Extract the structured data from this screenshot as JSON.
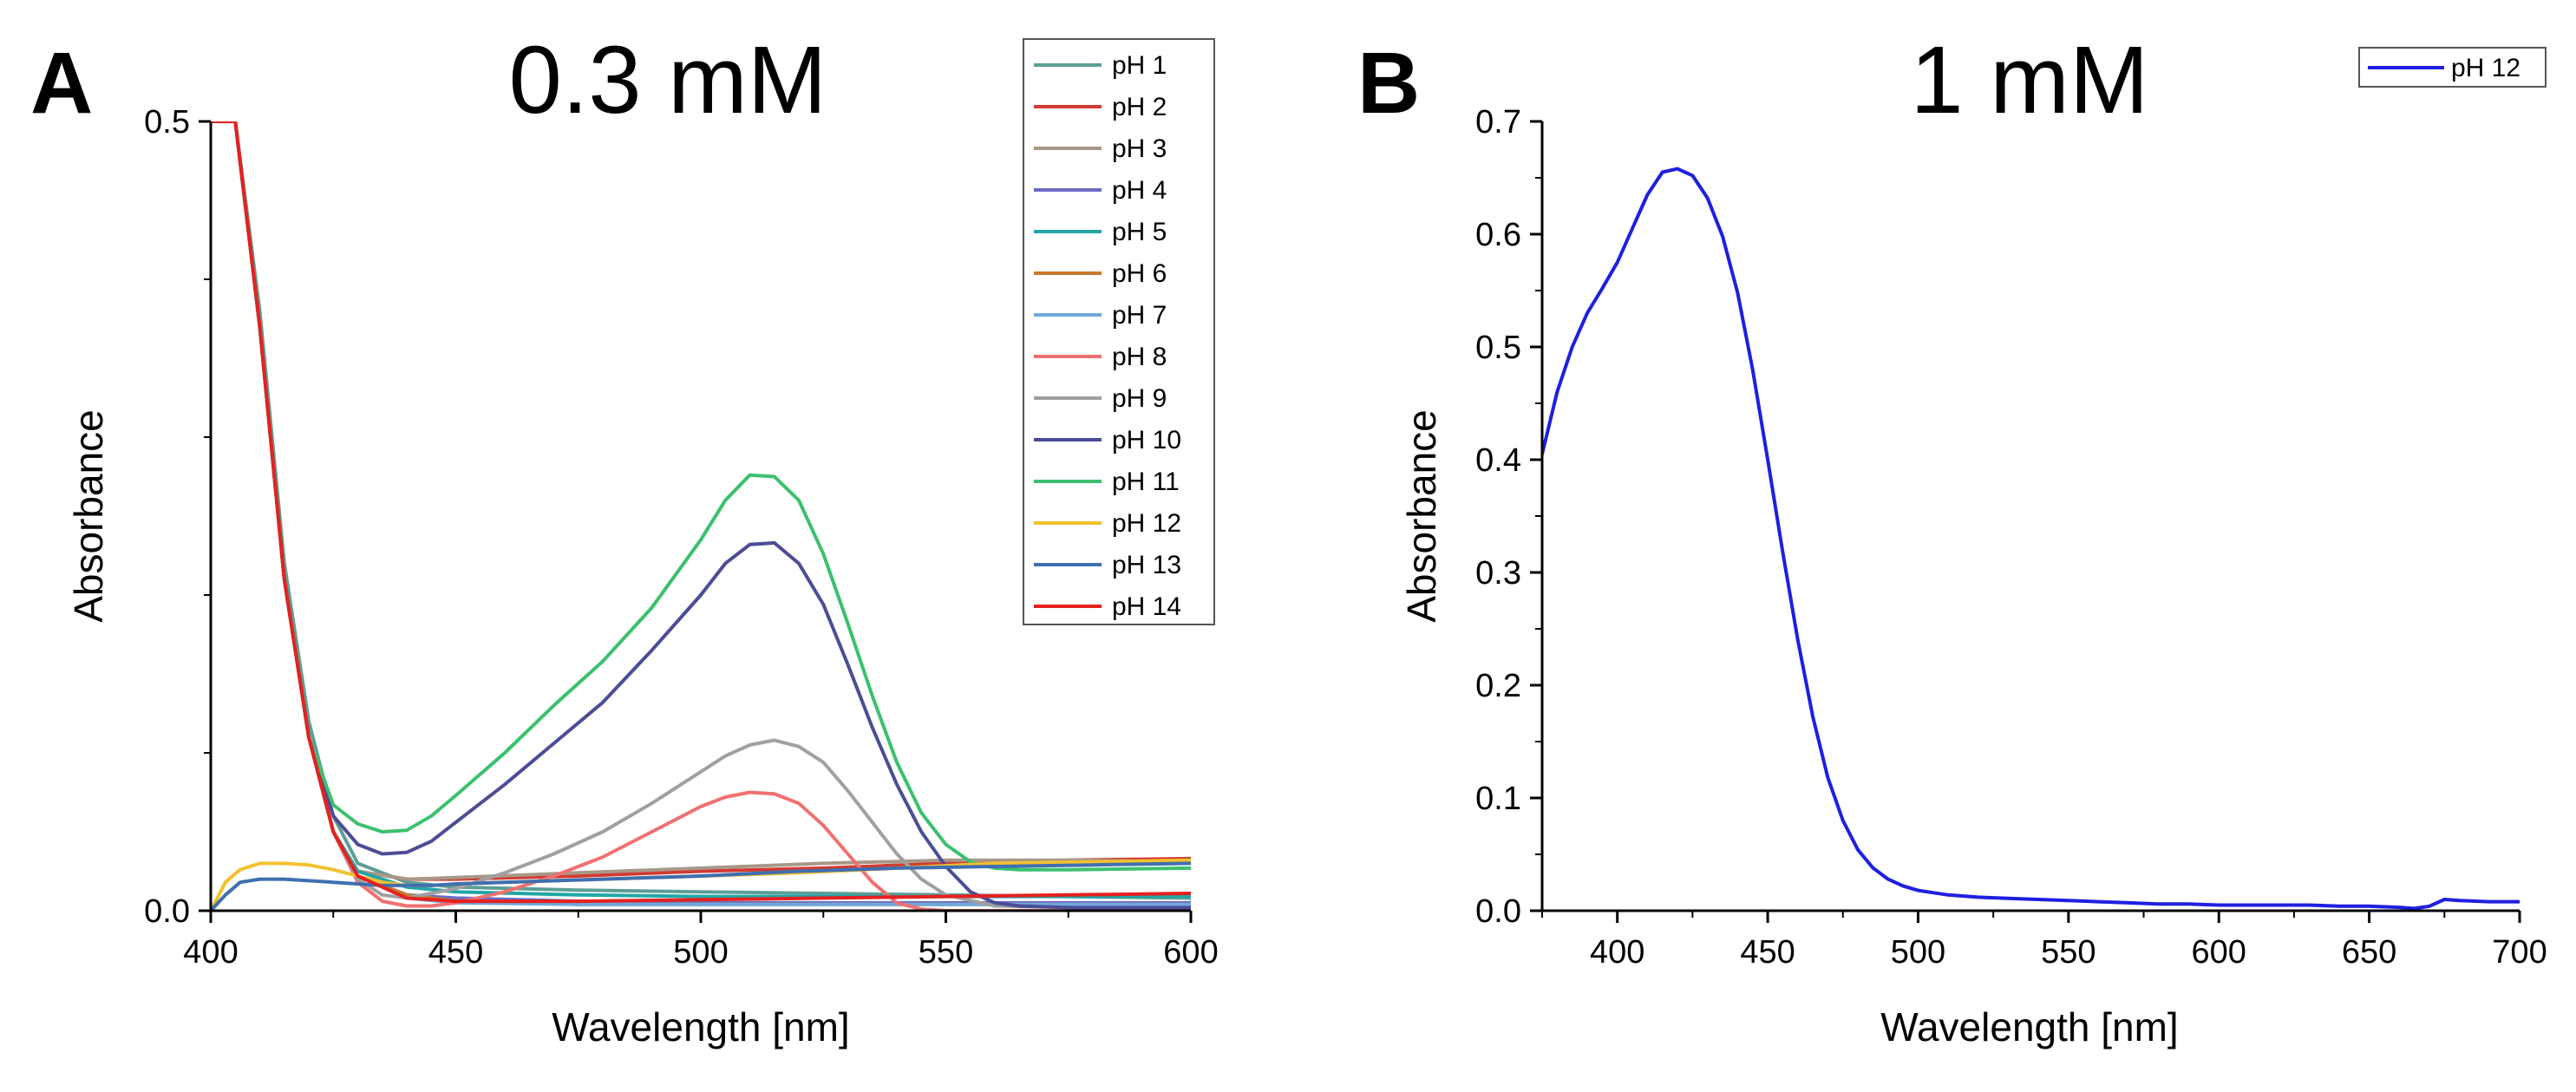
{
  "figure": {
    "background": "#ffffff"
  },
  "chart_data": [
    {
      "panel": "A",
      "type": "line",
      "title": "0.3 mM",
      "xlabel": "Wavelength [nm]",
      "ylabel": "Absorbance",
      "xlim": [
        400,
        600
      ],
      "ylim": [
        0,
        0.5
      ],
      "xticks": [
        400,
        450,
        500,
        550,
        600
      ],
      "xtick_labels": [
        "400",
        "450",
        "500",
        "550",
        "600"
      ],
      "yticks": [
        0,
        0.5
      ],
      "ytick_labels": [
        "0.0",
        "0.5"
      ],
      "legend_position": "top-right",
      "series": [
        {
          "name": "pH 1",
          "color": "#5c9e96",
          "x": [
            400,
            402,
            405,
            410,
            415,
            420,
            425,
            430,
            440,
            450,
            475,
            500,
            525,
            550,
            575,
            600
          ],
          "y": [
            0.5,
            0.5,
            0.5,
            0.38,
            0.22,
            0.12,
            0.06,
            0.03,
            0.018,
            0.015,
            0.013,
            0.012,
            0.011,
            0.01,
            0.009,
            0.008
          ]
        },
        {
          "name": "pH 2",
          "color": "#d23a32",
          "x": [
            400,
            402,
            405,
            410,
            415,
            420,
            425,
            430,
            440,
            450,
            475,
            500,
            525,
            550,
            575,
            600
          ],
          "y": [
            0.5,
            0.5,
            0.5,
            0.37,
            0.21,
            0.11,
            0.05,
            0.025,
            0.02,
            0.02,
            0.022,
            0.025,
            0.027,
            0.03,
            0.032,
            0.033
          ]
        },
        {
          "name": "pH 3",
          "color": "#a89888",
          "x": [
            400,
            402,
            405,
            410,
            415,
            420,
            425,
            430,
            440,
            450,
            475,
            500,
            525,
            550,
            575,
            600
          ],
          "y": [
            0.5,
            0.5,
            0.5,
            0.37,
            0.21,
            0.11,
            0.05,
            0.025,
            0.02,
            0.021,
            0.024,
            0.027,
            0.03,
            0.032,
            0.032,
            0.031
          ]
        },
        {
          "name": "pH 4",
          "color": "#6b6bc4",
          "x": [
            400,
            402,
            405,
            410,
            415,
            420,
            425,
            430,
            440,
            450,
            475,
            500,
            525,
            550,
            575,
            600
          ],
          "y": [
            0.5,
            0.5,
            0.5,
            0.37,
            0.21,
            0.11,
            0.05,
            0.022,
            0.01,
            0.008,
            0.006,
            0.005,
            0.005,
            0.005,
            0.005,
            0.005
          ]
        },
        {
          "name": "pH 5",
          "color": "#22a6a6",
          "x": [
            400,
            402,
            405,
            410,
            415,
            420,
            425,
            430,
            440,
            450,
            475,
            500,
            525,
            550,
            575,
            600
          ],
          "y": [
            0.5,
            0.5,
            0.5,
            0.37,
            0.21,
            0.11,
            0.05,
            0.025,
            0.015,
            0.012,
            0.01,
            0.009,
            0.009,
            0.009,
            0.009,
            0.009
          ]
        },
        {
          "name": "pH 6",
          "color": "#c8782a",
          "x": [
            400,
            402,
            405,
            410,
            415,
            420,
            425,
            430,
            440,
            450,
            475,
            500,
            525,
            550,
            575,
            600
          ],
          "y": [
            0.5,
            0.5,
            0.5,
            0.37,
            0.21,
            0.11,
            0.05,
            0.022,
            0.01,
            0.006,
            0.004,
            0.004,
            0.004,
            0.004,
            0.004,
            0.004
          ]
        },
        {
          "name": "pH 7",
          "color": "#6fa8dc",
          "x": [
            400,
            402,
            405,
            410,
            415,
            420,
            425,
            430,
            440,
            450,
            475,
            500,
            525,
            550,
            575,
            600
          ],
          "y": [
            0.5,
            0.5,
            0.5,
            0.37,
            0.21,
            0.11,
            0.05,
            0.022,
            0.008,
            0.005,
            0.004,
            0.004,
            0.004,
            0.004,
            0.004,
            0.004
          ]
        },
        {
          "name": "pH 8",
          "color": "#f07070",
          "x": [
            400,
            405,
            410,
            415,
            420,
            425,
            430,
            435,
            440,
            445,
            450,
            460,
            470,
            480,
            490,
            500,
            505,
            510,
            515,
            520,
            525,
            530,
            535,
            540,
            545,
            550,
            575,
            600
          ],
          "y": [
            0.5,
            0.5,
            0.37,
            0.21,
            0.11,
            0.05,
            0.018,
            0.006,
            0.003,
            0.003,
            0.005,
            0.012,
            0.022,
            0.034,
            0.05,
            0.066,
            0.072,
            0.075,
            0.074,
            0.068,
            0.054,
            0.036,
            0.018,
            0.005,
            0.001,
            0,
            0,
            0
          ]
        },
        {
          "name": "pH 9",
          "color": "#a0a0a0",
          "x": [
            400,
            405,
            410,
            415,
            420,
            425,
            430,
            435,
            440,
            450,
            460,
            470,
            480,
            490,
            500,
            505,
            510,
            515,
            520,
            525,
            530,
            535,
            540,
            545,
            550,
            560,
            575,
            600
          ],
          "y": [
            0.5,
            0.5,
            0.37,
            0.21,
            0.11,
            0.05,
            0.02,
            0.01,
            0.008,
            0.014,
            0.024,
            0.036,
            0.05,
            0.068,
            0.088,
            0.098,
            0.105,
            0.108,
            0.104,
            0.094,
            0.076,
            0.056,
            0.036,
            0.02,
            0.01,
            0.003,
            0.002,
            0.002
          ]
        },
        {
          "name": "pH 10",
          "color": "#4c4c96",
          "x": [
            400,
            405,
            410,
            415,
            420,
            425,
            430,
            435,
            440,
            445,
            450,
            460,
            470,
            480,
            490,
            500,
            505,
            510,
            515,
            520,
            525,
            530,
            535,
            540,
            545,
            550,
            555,
            560,
            565,
            575,
            600
          ],
          "y": [
            0.5,
            0.5,
            0.37,
            0.21,
            0.11,
            0.06,
            0.042,
            0.036,
            0.037,
            0.044,
            0.056,
            0.08,
            0.106,
            0.132,
            0.165,
            0.2,
            0.22,
            0.232,
            0.233,
            0.22,
            0.194,
            0.156,
            0.116,
            0.08,
            0.05,
            0.028,
            0.012,
            0.005,
            0.003,
            0.002,
            0.002
          ]
        },
        {
          "name": "pH 11",
          "color": "#3cc06e",
          "x": [
            400,
            405,
            410,
            415,
            420,
            425,
            430,
            435,
            440,
            445,
            450,
            460,
            470,
            480,
            490,
            500,
            505,
            510,
            515,
            520,
            525,
            530,
            535,
            540,
            545,
            550,
            555,
            560,
            565,
            575,
            600
          ],
          "y": [
            0.5,
            0.5,
            0.37,
            0.21,
            0.11,
            0.067,
            0.055,
            0.05,
            0.051,
            0.06,
            0.073,
            0.1,
            0.13,
            0.158,
            0.192,
            0.235,
            0.26,
            0.276,
            0.275,
            0.26,
            0.226,
            0.182,
            0.136,
            0.094,
            0.062,
            0.042,
            0.031,
            0.027,
            0.026,
            0.026,
            0.027
          ]
        },
        {
          "name": "pH 12",
          "color": "#f2c12e",
          "x": [
            400,
            403,
            406,
            410,
            415,
            420,
            425,
            430,
            435,
            440,
            445,
            450,
            460,
            480,
            500,
            520,
            540,
            560,
            580,
            600
          ],
          "y": [
            0.0,
            0.018,
            0.026,
            0.03,
            0.03,
            0.029,
            0.026,
            0.022,
            0.018,
            0.016,
            0.016,
            0.017,
            0.018,
            0.02,
            0.022,
            0.024,
            0.027,
            0.03,
            0.031,
            0.032
          ]
        },
        {
          "name": "pH 13",
          "color": "#3f6fb0",
          "x": [
            400,
            403,
            406,
            410,
            415,
            420,
            425,
            430,
            435,
            440,
            445,
            450,
            460,
            480,
            500,
            520,
            540,
            560,
            580,
            600
          ],
          "y": [
            0.0,
            0.01,
            0.018,
            0.02,
            0.02,
            0.019,
            0.018,
            0.017,
            0.016,
            0.016,
            0.016,
            0.017,
            0.018,
            0.02,
            0.022,
            0.025,
            0.027,
            0.028,
            0.029,
            0.03
          ]
        },
        {
          "name": "pH 14",
          "color": "#e5211f",
          "x": [
            400,
            402,
            405,
            410,
            415,
            420,
            425,
            430,
            440,
            450,
            475,
            500,
            525,
            550,
            575,
            600
          ],
          "y": [
            0.5,
            0.5,
            0.5,
            0.37,
            0.21,
            0.11,
            0.05,
            0.022,
            0.008,
            0.006,
            0.006,
            0.007,
            0.008,
            0.009,
            0.01,
            0.011
          ]
        }
      ]
    },
    {
      "panel": "B",
      "type": "line",
      "title": "1 mM",
      "xlabel": "Wavelength [nm]",
      "ylabel": "Absorbance",
      "xlim": [
        375,
        700
      ],
      "ylim": [
        0,
        0.7
      ],
      "xticks": [
        400,
        450,
        500,
        550,
        600,
        650,
        700
      ],
      "xtick_labels": [
        "400",
        "450",
        "500",
        "550",
        "600",
        "650",
        "700"
      ],
      "yticks": [
        0,
        0.1,
        0.2,
        0.3,
        0.4,
        0.5,
        0.6,
        0.7
      ],
      "ytick_labels": [
        "0.0",
        "0.1",
        "0.2",
        "0.3",
        "0.4",
        "0.5",
        "0.6",
        "0.7"
      ],
      "legend_position": "top-right",
      "series": [
        {
          "name": "pH 12",
          "color": "#1f1fe0",
          "x": [
            375,
            380,
            385,
            390,
            395,
            400,
            405,
            410,
            415,
            420,
            425,
            430,
            435,
            440,
            445,
            450,
            455,
            460,
            465,
            470,
            475,
            480,
            485,
            490,
            495,
            500,
            505,
            510,
            520,
            530,
            540,
            550,
            560,
            570,
            580,
            590,
            600,
            610,
            620,
            630,
            640,
            650,
            660,
            665,
            670,
            675,
            680,
            690,
            700
          ],
          "y": [
            0.405,
            0.46,
            0.5,
            0.53,
            0.552,
            0.575,
            0.605,
            0.635,
            0.655,
            0.658,
            0.652,
            0.632,
            0.598,
            0.548,
            0.48,
            0.4,
            0.318,
            0.24,
            0.172,
            0.118,
            0.08,
            0.054,
            0.038,
            0.028,
            0.022,
            0.018,
            0.016,
            0.014,
            0.012,
            0.011,
            0.01,
            0.009,
            0.008,
            0.007,
            0.006,
            0.006,
            0.005,
            0.005,
            0.005,
            0.005,
            0.004,
            0.004,
            0.003,
            0.002,
            0.004,
            0.01,
            0.009,
            0.008,
            0.008
          ]
        }
      ]
    }
  ]
}
